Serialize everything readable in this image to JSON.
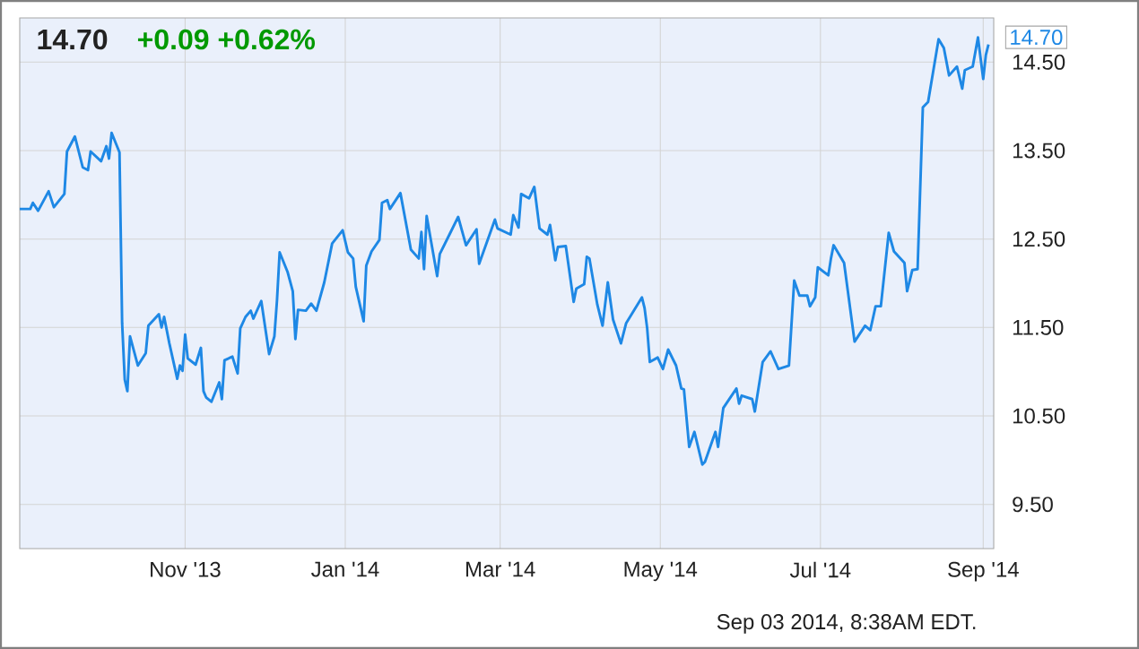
{
  "chart_data": {
    "type": "line",
    "title": "14.70",
    "subtitle": "+0.09 +0.62%",
    "annotations": [
      "Sep 03 2014, 8:38AM EDT.",
      {
        "text": "14.70",
        "x": "2014-09-03",
        "y": 14.7
      }
    ],
    "xlim": [
      "2013-08-30",
      "2014-09-05"
    ],
    "xticks": [
      {
        "value": "2013-11-01",
        "label": "Nov '13"
      },
      {
        "value": "2014-01-01",
        "label": "Jan '14"
      },
      {
        "value": "2014-03-01",
        "label": "Mar '14"
      },
      {
        "value": "2014-05-01",
        "label": "May '14"
      },
      {
        "value": "2014-07-01",
        "label": "Jul '14"
      },
      {
        "value": "2014-09-01",
        "label": "Sep '14"
      }
    ],
    "ylim": [
      9,
      15
    ],
    "yticks": [
      {
        "value": 9.5,
        "label": "9.50"
      },
      {
        "value": 10.5,
        "label": "10.50"
      },
      {
        "value": 11.5,
        "label": "11.50"
      },
      {
        "value": 12.5,
        "label": "12.50"
      },
      {
        "value": 13.5,
        "label": "13.50"
      },
      {
        "value": 14.5,
        "label": "14.50"
      }
    ],
    "grid": true,
    "series": [
      {
        "color": "#1e88e5",
        "x": [
          "2013-08-30",
          "2013-09-03",
          "2013-09-04",
          "2013-09-06",
          "2013-09-10",
          "2013-09-12",
          "2013-09-16",
          "2013-09-17",
          "2013-09-20",
          "2013-09-23",
          "2013-09-25",
          "2013-09-26",
          "2013-09-30",
          "2013-10-02",
          "2013-10-03",
          "2013-10-04",
          "2013-10-07",
          "2013-10-08",
          "2013-10-09",
          "2013-10-10",
          "2013-10-11",
          "2013-10-14",
          "2013-10-17",
          "2013-10-18",
          "2013-10-22",
          "2013-10-23",
          "2013-10-24",
          "2013-10-26",
          "2013-10-29",
          "2013-10-30",
          "2013-10-31",
          "2013-11-01",
          "2013-11-02",
          "2013-11-05",
          "2013-11-07",
          "2013-11-08",
          "2013-11-09",
          "2013-11-11",
          "2013-11-14",
          "2013-11-15",
          "2013-11-16",
          "2013-11-19",
          "2013-11-21",
          "2013-11-22",
          "2013-11-24",
          "2013-11-26",
          "2013-11-27",
          "2013-11-30",
          "2013-12-03",
          "2013-12-05",
          "2013-12-06",
          "2013-12-07",
          "2013-12-10",
          "2013-12-12",
          "2013-12-13",
          "2013-12-14",
          "2013-12-17",
          "2013-12-19",
          "2013-12-21",
          "2013-12-24",
          "2013-12-27",
          "2013-12-31",
          "2014-01-02",
          "2014-01-04",
          "2014-01-05",
          "2014-01-08",
          "2014-01-09",
          "2014-01-11",
          "2014-01-14",
          "2014-01-15",
          "2014-01-17",
          "2014-01-18",
          "2014-01-22",
          "2014-01-26",
          "2014-01-29",
          "2014-01-30",
          "2014-01-31",
          "2014-02-01",
          "2014-02-05",
          "2014-02-06",
          "2014-02-10",
          "2014-02-13",
          "2014-02-16",
          "2014-02-20",
          "2014-02-21",
          "2014-02-27",
          "2014-02-28",
          "2014-03-05",
          "2014-03-06",
          "2014-03-08",
          "2014-03-09",
          "2014-03-12",
          "2014-03-14",
          "2014-03-16",
          "2014-03-19",
          "2014-03-20",
          "2014-03-22",
          "2014-03-23",
          "2014-03-26",
          "2014-03-29",
          "2014-03-30",
          "2014-04-02",
          "2014-04-03",
          "2014-04-04",
          "2014-04-07",
          "2014-04-09",
          "2014-04-11",
          "2014-04-13",
          "2014-04-16",
          "2014-04-18",
          "2014-04-24",
          "2014-04-25",
          "2014-04-26",
          "2014-04-27",
          "2014-04-30",
          "2014-05-02",
          "2014-05-04",
          "2014-05-07",
          "2014-05-09",
          "2014-05-10",
          "2014-05-12",
          "2014-05-14",
          "2014-05-17",
          "2014-05-18",
          "2014-05-22",
          "2014-05-23",
          "2014-05-25",
          "2014-05-30",
          "2014-05-31",
          "2014-06-01",
          "2014-06-05",
          "2014-06-06",
          "2014-06-09",
          "2014-06-12",
          "2014-06-15",
          "2014-06-19",
          "2014-06-21",
          "2014-06-23",
          "2014-06-26",
          "2014-06-27",
          "2014-06-29",
          "2014-06-30",
          "2014-07-04",
          "2014-07-05",
          "2014-07-06",
          "2014-07-10",
          "2014-07-14",
          "2014-07-18",
          "2014-07-20",
          "2014-07-22",
          "2014-07-24",
          "2014-07-27",
          "2014-07-29",
          "2014-08-02",
          "2014-08-03",
          "2014-08-05",
          "2014-08-07",
          "2014-08-09",
          "2014-08-11",
          "2014-08-15",
          "2014-08-17",
          "2014-08-19",
          "2014-08-22",
          "2014-08-24",
          "2014-08-25",
          "2014-08-28",
          "2014-08-30",
          "2014-09-01",
          "2014-09-02",
          "2014-09-03"
        ],
        "values": [
          12.84,
          12.84,
          12.91,
          12.82,
          13.04,
          12.86,
          13.01,
          13.49,
          13.66,
          13.31,
          13.28,
          13.49,
          13.38,
          13.55,
          13.41,
          13.7,
          13.48,
          11.55,
          10.91,
          10.78,
          11.4,
          11.07,
          11.21,
          11.52,
          11.65,
          11.5,
          11.62,
          11.32,
          10.92,
          11.07,
          11.01,
          11.42,
          11.15,
          11.08,
          11.27,
          10.78,
          10.71,
          10.66,
          10.88,
          10.69,
          11.13,
          11.17,
          10.98,
          11.49,
          11.62,
          11.69,
          11.6,
          11.8,
          11.2,
          11.4,
          11.81,
          12.35,
          12.13,
          11.91,
          11.37,
          11.7,
          11.69,
          11.77,
          11.69,
          12.01,
          12.45,
          12.6,
          12.35,
          12.28,
          11.96,
          11.57,
          12.2,
          12.36,
          12.49,
          12.91,
          12.94,
          12.84,
          13.02,
          12.38,
          12.28,
          12.58,
          12.16,
          12.76,
          12.08,
          12.33,
          12.57,
          12.75,
          12.43,
          12.61,
          12.22,
          12.72,
          12.62,
          12.55,
          12.77,
          12.63,
          13.01,
          12.96,
          13.09,
          12.62,
          12.55,
          12.66,
          12.26,
          12.41,
          12.42,
          11.79,
          11.94,
          11.99,
          12.3,
          12.28,
          11.76,
          11.52,
          12.01,
          11.59,
          11.32,
          11.55,
          11.84,
          11.72,
          11.49,
          11.11,
          11.16,
          11.03,
          11.25,
          11.07,
          10.81,
          10.8,
          10.15,
          10.32,
          9.95,
          9.98,
          10.32,
          10.15,
          10.59,
          10.81,
          10.64,
          10.73,
          10.69,
          10.55,
          11.11,
          11.23,
          11.03,
          11.07,
          12.03,
          11.86,
          11.86,
          11.74,
          11.84,
          12.18,
          12.09,
          12.28,
          12.43,
          12.23,
          11.34,
          11.52,
          11.47,
          11.74,
          11.74,
          12.57,
          12.36,
          12.23,
          11.91,
          12.15,
          12.16,
          13.99,
          14.05,
          14.76,
          14.66,
          14.35,
          14.45,
          14.2,
          14.41,
          14.45,
          14.78,
          14.31,
          14.58,
          14.7
        ]
      }
    ]
  }
}
